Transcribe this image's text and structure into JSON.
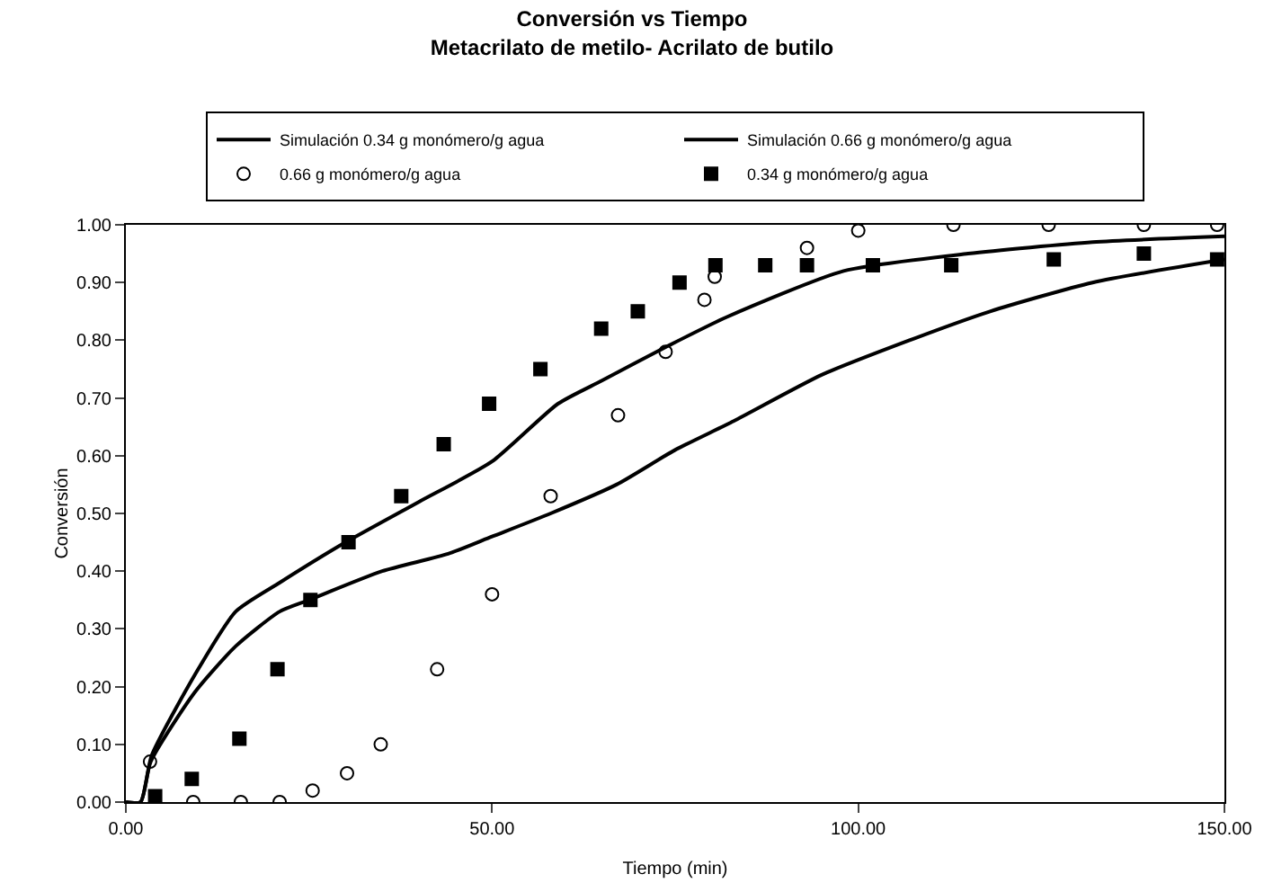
{
  "chart_data": {
    "type": "scatter",
    "title": "Conversión vs Tiempo",
    "subtitle": "Metacrilato de metilo- Acrilato de butilo",
    "xlabel": "Tiempo (min)",
    "ylabel": "Conversión",
    "xlim": [
      0,
      150
    ],
    "xticks": [
      {
        "value": 0,
        "label": "0.00"
      },
      {
        "value": 50,
        "label": "50.00"
      },
      {
        "value": 100,
        "label": "100.00"
      },
      {
        "value": 150,
        "label": "150.00"
      }
    ],
    "ylim": [
      0,
      1
    ],
    "yticks": [
      {
        "value": 0,
        "label": "0.00"
      },
      {
        "value": 0.1,
        "label": "0.10"
      },
      {
        "value": 0.2,
        "label": "0.20"
      },
      {
        "value": 0.3,
        "label": "0.30"
      },
      {
        "value": 0.4,
        "label": "0.40"
      },
      {
        "value": 0.5,
        "label": "0.50"
      },
      {
        "value": 0.6,
        "label": "0.60"
      },
      {
        "value": 0.7,
        "label": "0.70"
      },
      {
        "value": 0.8,
        "label": "0.80"
      },
      {
        "value": 0.9,
        "label": "0.90"
      },
      {
        "value": 1,
        "label": "1.00"
      }
    ],
    "grid": false,
    "legend": "top",
    "series": [
      {
        "name": "Simulación 0.34 g monómero/g agua",
        "type": "line",
        "color": "#000000",
        "marker": "none",
        "x": [
          0,
          2,
          3.5,
          9.4,
          15,
          21,
          30,
          40,
          50,
          59,
          65,
          74,
          82,
          98,
          115,
          132,
          150
        ],
        "values": [
          0,
          0,
          0.08,
          0.22,
          0.33,
          0.38,
          0.45,
          0.52,
          0.59,
          0.69,
          0.73,
          0.79,
          0.84,
          0.92,
          0.95,
          0.97,
          0.98
        ]
      },
      {
        "name": "Simulación 0.66 g monómero/g agua",
        "type": "line",
        "color": "#000000",
        "marker": "none",
        "x": [
          0,
          2,
          3.4,
          9.4,
          15,
          21,
          25,
          35,
          44,
          50,
          58,
          67,
          75,
          83,
          95,
          107,
          118,
          132,
          150
        ],
        "values": [
          0,
          0,
          0.07,
          0.19,
          0.27,
          0.33,
          0.35,
          0.4,
          0.43,
          0.46,
          0.5,
          0.55,
          0.61,
          0.66,
          0.74,
          0.8,
          0.85,
          0.9,
          0.94
        ]
      },
      {
        "name": "0.66 g monómero/g agua",
        "color": "#000000",
        "marker": "circle",
        "x": [
          3.3,
          9.2,
          15.7,
          21,
          25.5,
          30.2,
          34.8,
          42.5,
          50,
          58,
          67.2,
          73.7,
          79,
          80.4,
          93,
          100,
          113,
          126,
          139,
          149
        ],
        "values": [
          0.07,
          0,
          0,
          0,
          0.02,
          0.05,
          0.1,
          0.23,
          0.36,
          0.53,
          0.67,
          0.78,
          0.87,
          0.91,
          0.96,
          0.99,
          1,
          1,
          1,
          1
        ]
      },
      {
        "name": "0.34 g monómero/g agua",
        "color": "#000000",
        "marker": "square",
        "x": [
          4,
          9,
          15.5,
          20.7,
          25.2,
          30.4,
          37.6,
          43.4,
          49.6,
          56.6,
          64.9,
          69.9,
          75.6,
          80.5,
          87.3,
          93,
          102,
          112.7,
          126.7,
          139,
          149
        ],
        "values": [
          0.01,
          0.04,
          0.11,
          0.23,
          0.35,
          0.45,
          0.53,
          0.62,
          0.69,
          0.75,
          0.82,
          0.85,
          0.9,
          0.93,
          0.93,
          0.93,
          0.93,
          0.93,
          0.94,
          0.95,
          0.94
        ]
      }
    ]
  }
}
